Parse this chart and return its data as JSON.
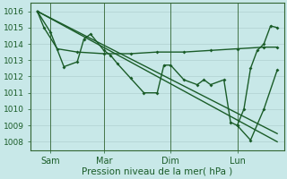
{
  "xlabel": "Pression niveau de la mer( hPa )",
  "bg_color": "#c8e8e8",
  "grid_color": "#b0d0d0",
  "line_color": "#1a5c28",
  "spine_color": "#336633",
  "ylim": [
    1007.5,
    1016.5
  ],
  "xlim": [
    -0.5,
    18.5
  ],
  "xtick_positions": [
    1,
    5,
    10,
    15
  ],
  "xtick_labels": [
    "Sam",
    "Mar",
    "Dim",
    "Lun"
  ],
  "ytick_positions": [
    1008,
    1009,
    1010,
    1011,
    1012,
    1013,
    1014,
    1015,
    1016
  ],
  "vline_positions": [
    1,
    5,
    10,
    15
  ],
  "trend1_x": [
    0,
    18
  ],
  "trend1_y": [
    1016.0,
    1008.0
  ],
  "trend2_x": [
    0,
    18
  ],
  "trend2_y": [
    1016.0,
    1008.5
  ],
  "smooth_x": [
    0,
    0.5,
    1.5,
    3,
    5,
    7,
    9,
    11,
    13,
    15,
    17,
    18
  ],
  "smooth_y": [
    1016.0,
    1015.0,
    1013.7,
    1013.5,
    1013.4,
    1013.4,
    1013.5,
    1013.5,
    1013.6,
    1013.7,
    1013.8,
    1013.8
  ],
  "jagged_x": [
    0,
    1,
    2,
    3,
    3.5,
    4,
    5,
    5.5,
    6,
    7,
    8,
    9,
    9.5,
    10,
    11,
    12,
    12.5,
    13,
    14,
    14.5,
    15,
    16,
    17,
    18
  ],
  "jagged_y": [
    1016.0,
    1014.7,
    1012.6,
    1012.9,
    1014.3,
    1014.6,
    1013.6,
    1013.3,
    1012.8,
    1011.9,
    1011.0,
    1011.0,
    1012.7,
    1012.7,
    1011.8,
    1011.5,
    1011.8,
    1011.5,
    1011.8,
    1009.2,
    1009.0,
    1008.1,
    1010.0,
    1012.4
  ],
  "rise_x": [
    15,
    15.5,
    16,
    16.5,
    17,
    17.5,
    18
  ],
  "rise_y": [
    1009.0,
    1010.0,
    1012.5,
    1013.6,
    1014.0,
    1015.1,
    1015.0
  ]
}
